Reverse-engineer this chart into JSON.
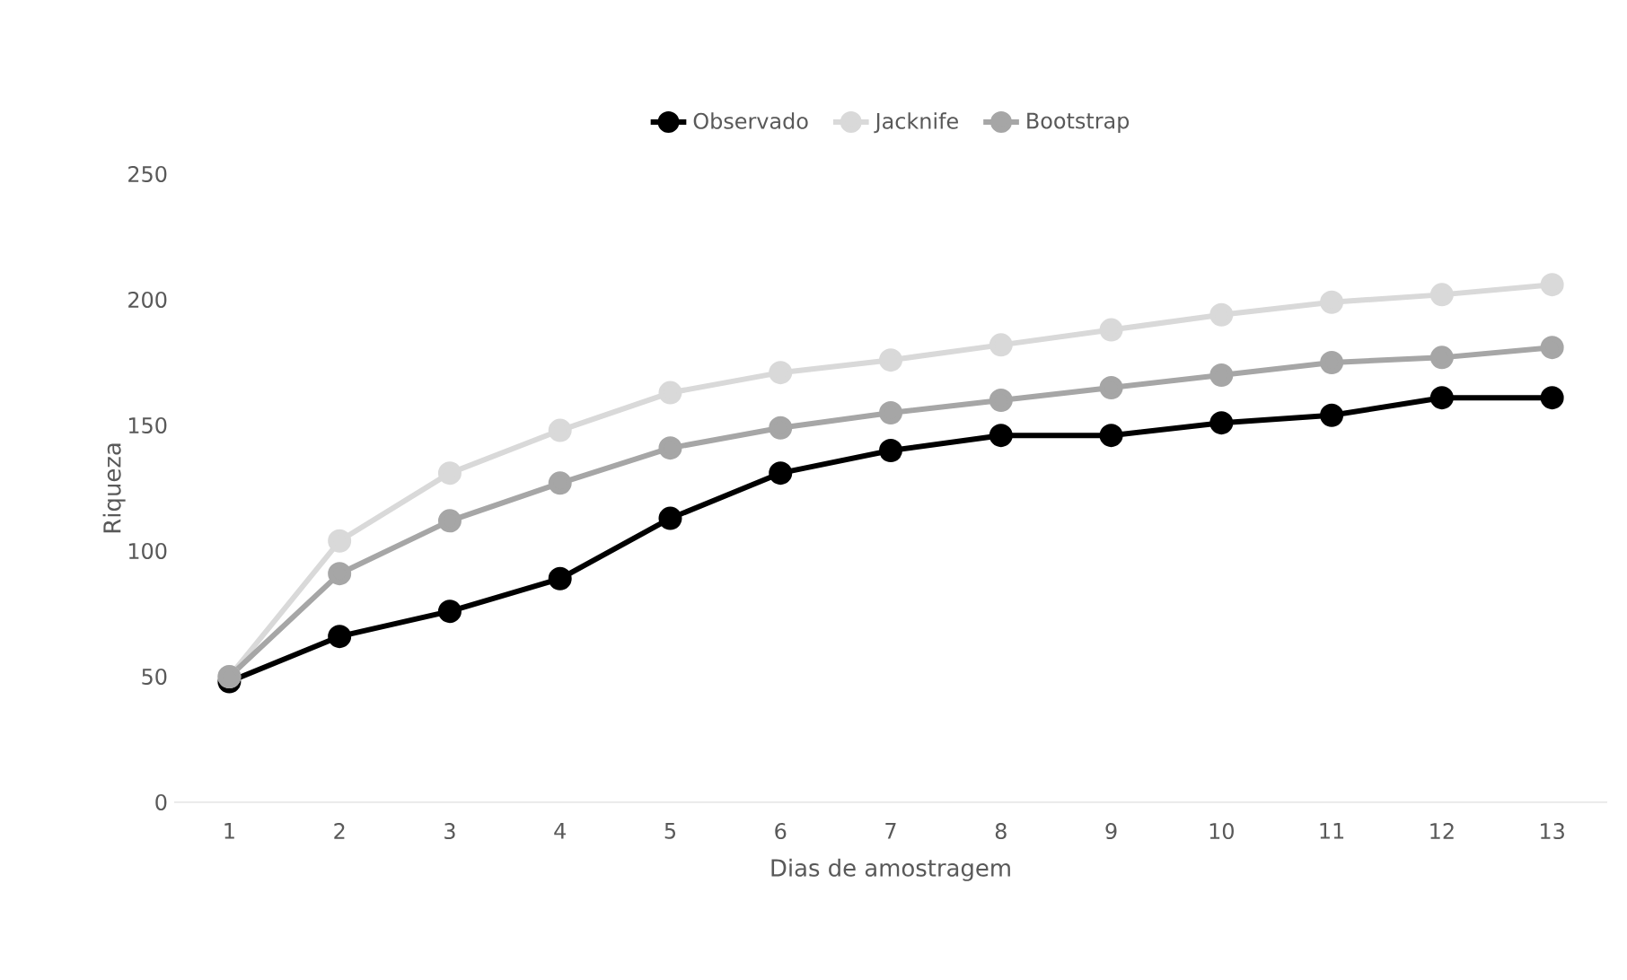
{
  "chart_data": {
    "type": "line",
    "xlabel": "Dias de amostragem",
    "ylabel": "Riqueza",
    "categories": [
      "1",
      "2",
      "3",
      "4",
      "5",
      "6",
      "7",
      "8",
      "9",
      "10",
      "11",
      "12",
      "13"
    ],
    "ylim": [
      0,
      250
    ],
    "yticks": [
      0,
      50,
      100,
      150,
      200,
      250
    ],
    "grid": false,
    "legend": "top",
    "marker": "circle",
    "line_style": "solid",
    "series": [
      {
        "name": "Observado",
        "color": "#000000",
        "values": [
          48,
          66,
          76,
          89,
          113,
          131,
          140,
          146,
          146,
          151,
          154,
          161,
          161
        ]
      },
      {
        "name": "Jacknife",
        "color": "#d9d9d9",
        "values": [
          50,
          104,
          131,
          148,
          163,
          171,
          176,
          182,
          188,
          194,
          199,
          202,
          206
        ]
      },
      {
        "name": "Bootstrap",
        "color": "#a6a6a6",
        "values": [
          50,
          91,
          112,
          127,
          141,
          149,
          155,
          160,
          165,
          170,
          175,
          177,
          181
        ]
      }
    ]
  }
}
